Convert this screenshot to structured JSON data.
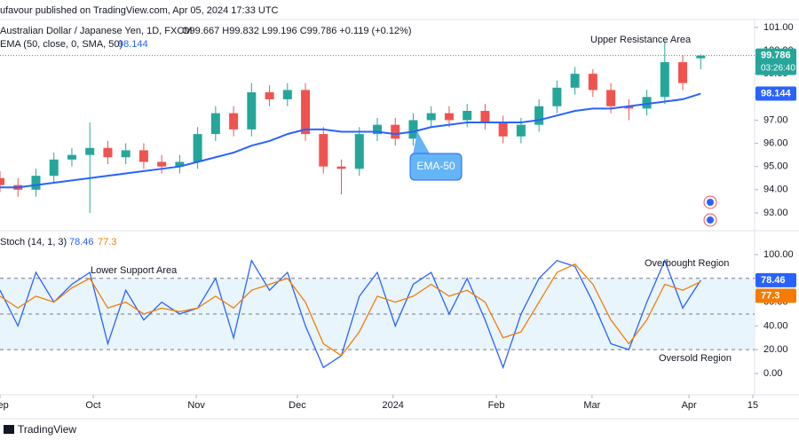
{
  "header": {
    "published": "ufavour published on TradingView.com, Apr 05, 2024 17:33 UTC"
  },
  "chart_data": [
    {
      "type": "candlestick",
      "title": "Australian Dollar / Japanese Yen, 1D, FXCM",
      "ohlc_text": "O99.667 H99.832 L99.196 C99.786 +0.119 (+0.12%)",
      "countdown": "03:26:40",
      "x": [
        0,
        4,
        8,
        12,
        16,
        20,
        24,
        28,
        32,
        36,
        40,
        44,
        48,
        52,
        56,
        60,
        64,
        68,
        72,
        76,
        80,
        84,
        88,
        92,
        96,
        100,
        104,
        108,
        112,
        116,
        120,
        124,
        128,
        132,
        136,
        140,
        144,
        148,
        152,
        156
      ],
      "open": [
        94.5,
        94.2,
        94.0,
        94.6,
        95.3,
        95.5,
        95.8,
        95.4,
        95.7,
        95.2,
        95.0,
        95.2,
        96.4,
        97.3,
        96.6,
        98.2,
        97.9,
        98.3,
        96.4,
        95.0,
        94.9,
        96.4,
        96.8,
        96.2,
        97.0,
        97.3,
        97.0,
        97.4,
        96.9,
        96.3,
        96.8,
        97.6,
        98.4,
        99.0,
        98.3,
        97.6,
        97.5,
        98.0,
        99.5,
        99.667
      ],
      "high": [
        94.8,
        94.5,
        94.9,
        95.6,
        95.8,
        96.9,
        96.1,
        96.0,
        96.0,
        95.5,
        95.5,
        96.7,
        97.6,
        97.6,
        98.6,
        98.5,
        98.6,
        98.6,
        96.7,
        95.3,
        96.7,
        97.1,
        97.1,
        97.3,
        97.6,
        97.6,
        97.7,
        97.7,
        97.2,
        97.1,
        97.9,
        98.7,
        99.3,
        99.2,
        98.6,
        97.9,
        98.3,
        100.4,
        99.8,
        99.832
      ],
      "low": [
        93.9,
        93.7,
        93.7,
        94.3,
        95.0,
        93.0,
        95.1,
        95.1,
        94.9,
        94.7,
        94.7,
        94.9,
        96.1,
        96.3,
        96.3,
        97.6,
        97.6,
        96.1,
        94.7,
        93.8,
        94.6,
        96.1,
        95.9,
        95.9,
        96.7,
        96.7,
        96.7,
        96.6,
        96.0,
        96.0,
        96.5,
        97.3,
        98.1,
        98.0,
        97.3,
        97.0,
        97.2,
        97.7,
        98.3,
        99.196
      ],
      "close": [
        94.2,
        94.0,
        94.6,
        95.3,
        95.5,
        95.8,
        95.4,
        95.7,
        95.2,
        95.0,
        95.2,
        96.4,
        97.3,
        96.6,
        98.2,
        97.9,
        98.3,
        96.4,
        95.0,
        94.9,
        96.4,
        96.8,
        96.2,
        97.0,
        97.3,
        97.0,
        97.4,
        96.9,
        96.3,
        96.8,
        97.6,
        98.4,
        99.0,
        98.3,
        97.6,
        97.5,
        98.0,
        99.5,
        98.6,
        99.786
      ],
      "up_color": "#26a69a",
      "down_color": "#ef5350",
      "overlays": [
        {
          "name": "EMA (50, close, 0, SMA, 50)",
          "color": "#2962ff",
          "values": [
            94.1,
            94.1,
            94.2,
            94.3,
            94.4,
            94.5,
            94.6,
            94.7,
            94.8,
            94.9,
            95.0,
            95.2,
            95.4,
            95.6,
            95.9,
            96.1,
            96.4,
            96.6,
            96.6,
            96.5,
            96.5,
            96.5,
            96.4,
            96.5,
            96.7,
            96.8,
            96.9,
            96.9,
            96.9,
            96.9,
            97.0,
            97.2,
            97.4,
            97.5,
            97.5,
            97.6,
            97.7,
            97.8,
            97.9,
            98.144
          ]
        }
      ],
      "annotations": [
        "Upper Resistance Area",
        "EMA-50"
      ],
      "xlim": [
        0,
        168
      ],
      "ylim": [
        92.31,
        101.34
      ],
      "yticks": [
        {
          "value": 93,
          "label": "93.00"
        },
        {
          "value": 94,
          "label": "94.00"
        },
        {
          "value": 95,
          "label": "95.00"
        },
        {
          "value": 96,
          "label": "96.00"
        },
        {
          "value": 97,
          "label": "97.00"
        },
        {
          "value": 98,
          "label": "98.00"
        },
        {
          "value": 99,
          "label": "99.00"
        },
        {
          "value": 100,
          "label": "100.00"
        },
        {
          "value": 101,
          "label": "101.00"
        }
      ]
    },
    {
      "type": "line",
      "title": "Stoch (14, 1, 3)",
      "x": [
        0,
        4,
        8,
        12,
        16,
        20,
        24,
        28,
        32,
        36,
        40,
        44,
        48,
        52,
        56,
        60,
        64,
        68,
        72,
        76,
        80,
        84,
        88,
        92,
        96,
        100,
        104,
        108,
        112,
        116,
        120,
        124,
        128,
        132,
        136,
        140,
        144,
        148,
        152,
        156
      ],
      "series": [
        {
          "color": "#2962ff",
          "values": [
            70,
            40,
            85,
            60,
            75,
            85,
            25,
            70,
            45,
            60,
            50,
            55,
            80,
            30,
            95,
            70,
            85,
            40,
            5,
            15,
            65,
            85,
            40,
            75,
            85,
            50,
            80,
            45,
            5,
            50,
            80,
            95,
            90,
            60,
            25,
            20,
            60,
            95,
            55,
            78.46
          ]
        },
        {
          "color": "#f57c00",
          "values": [
            65,
            55,
            65,
            60,
            72,
            80,
            55,
            60,
            50,
            55,
            52,
            55,
            65,
            55,
            70,
            75,
            80,
            60,
            25,
            15,
            35,
            65,
            60,
            65,
            75,
            65,
            70,
            60,
            30,
            35,
            60,
            85,
            92,
            75,
            45,
            25,
            45,
            75,
            70,
            77.3
          ]
        }
      ],
      "band": {
        "upper": 80,
        "middle": 50,
        "lower": 20
      },
      "annotations": [
        "Lower Support Area",
        "Overbought Region",
        "Oversold Region"
      ],
      "xlim": [
        0,
        168
      ],
      "ylim": [
        -14.2,
        117.9
      ],
      "yticks": [
        {
          "value": 0,
          "label": "0.00"
        },
        {
          "value": 20,
          "label": "20.00"
        },
        {
          "value": 40,
          "label": "40.00"
        },
        {
          "value": 60,
          "label": "60.00"
        },
        {
          "value": 80,
          "label": "80.00"
        },
        {
          "value": 100,
          "label": "100.00"
        }
      ],
      "xticks": [
        {
          "value": 0,
          "label": "Sep"
        },
        {
          "value": 20.75,
          "label": "Oct"
        },
        {
          "value": 43.7,
          "label": "Nov"
        },
        {
          "value": 66.2,
          "label": "Dec"
        },
        {
          "value": 87.5,
          "label": "2024"
        },
        {
          "value": 110.5,
          "label": "Feb"
        },
        {
          "value": 131.8,
          "label": "Mar"
        },
        {
          "value": 153.4,
          "label": "Apr"
        },
        {
          "value": 167.6,
          "label": "15"
        }
      ]
    }
  ],
  "footer": {
    "brand": "TradingView"
  }
}
